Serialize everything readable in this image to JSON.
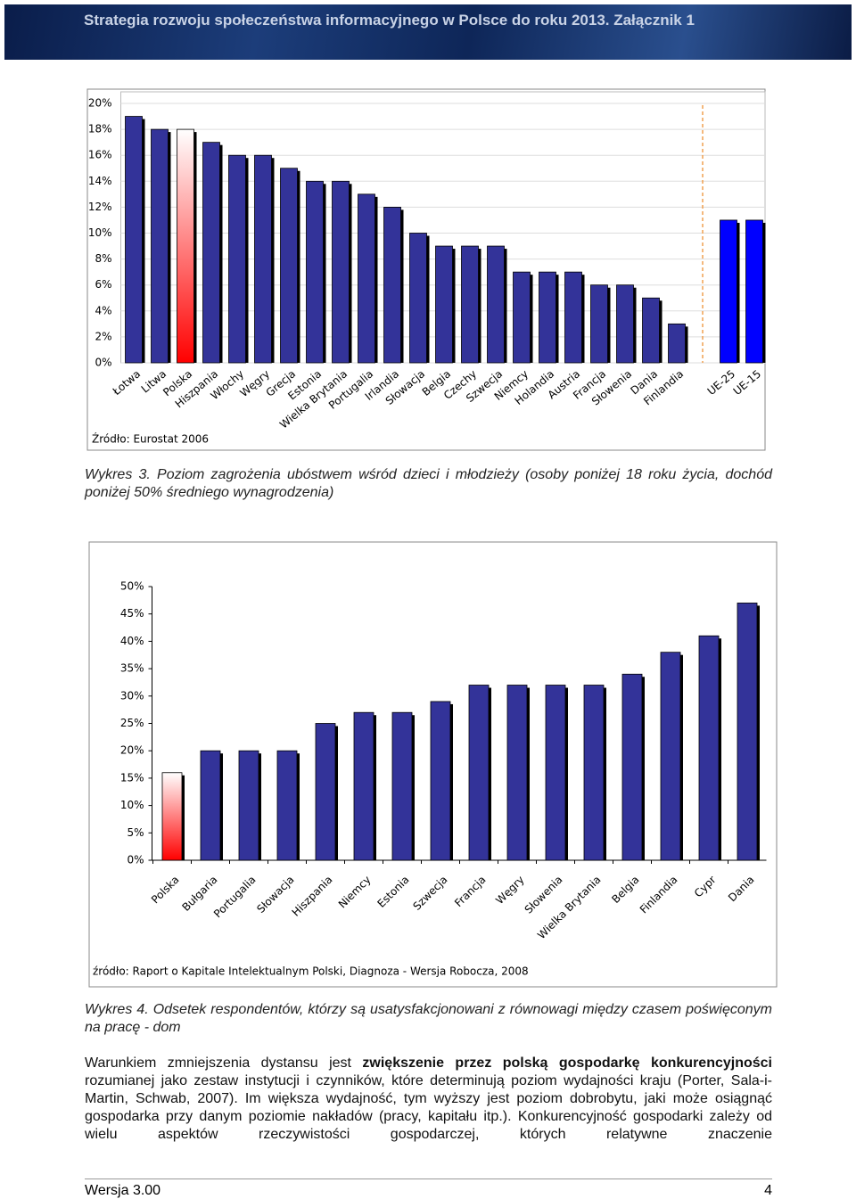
{
  "header": {
    "title": "Strategia rozwoju społeczeństwa informacyjnego w Polsce do roku 2013. Załącznik 1"
  },
  "chart_data": [
    {
      "type": "bar",
      "categories": [
        "Łotwa",
        "Litwa",
        "Polska",
        "Hiszpania",
        "Włochy",
        "Węgry",
        "Grecja",
        "Estonia",
        "Wielka Brytania",
        "Portugalia",
        "Irlandia",
        "Słowacja",
        "Belgia",
        "Czechy",
        "Szwecja",
        "Niemcy",
        "Holandia",
        "Austria",
        "Francja",
        "Słowenia",
        "Dania",
        "Finlandia",
        null,
        "UE-25",
        "UE-15"
      ],
      "values": [
        19,
        18,
        18,
        17,
        16,
        16,
        15,
        14,
        14,
        13,
        12,
        10,
        9,
        9,
        9,
        7,
        7,
        7,
        6,
        6,
        5,
        3,
        null,
        11,
        11
      ],
      "colors": [
        "#333399",
        "#333399",
        "#ff0000",
        "#333399",
        "#333399",
        "#333399",
        "#333399",
        "#333399",
        "#333399",
        "#333399",
        "#333399",
        "#333399",
        "#333399",
        "#333399",
        "#333399",
        "#333399",
        "#333399",
        "#333399",
        "#333399",
        "#333399",
        "#333399",
        "#333399",
        null,
        "#0000ff",
        "#0000ff"
      ],
      "highlight_color": "#ff0000",
      "ylim": [
        0,
        20
      ],
      "yticks": [
        {
          "value": 0,
          "label": "0%"
        },
        {
          "value": 2,
          "label": "2%"
        },
        {
          "value": 4,
          "label": "4%"
        },
        {
          "value": 6,
          "label": "6%"
        },
        {
          "value": 8,
          "label": "8%"
        },
        {
          "value": 10,
          "label": "10%"
        },
        {
          "value": 12,
          "label": "12%"
        },
        {
          "value": 14,
          "label": "14%"
        },
        {
          "value": 16,
          "label": "16%"
        },
        {
          "value": 18,
          "label": "18%"
        },
        {
          "value": 20,
          "label": "20%"
        }
      ],
      "grid": true,
      "source": "Źródło: Eurostat 2006"
    },
    {
      "type": "bar",
      "categories": [
        "Polska",
        "Bułgaria",
        "Portugalia",
        "Słowacja",
        "Hiszpania",
        "Niemcy",
        "Estonia",
        "Szwecja",
        "Francja",
        "Węgry",
        "Słowenia",
        "Wielka Brytania",
        "Belgia",
        "Finlandia",
        "Cypr",
        "Dania"
      ],
      "values": [
        16,
        20,
        20,
        20,
        25,
        27,
        27,
        29,
        32,
        32,
        32,
        32,
        34,
        38,
        41,
        47
      ],
      "colors": [
        "#ff0000",
        "#333399",
        "#333399",
        "#333399",
        "#333399",
        "#333399",
        "#333399",
        "#333399",
        "#333399",
        "#333399",
        "#333399",
        "#333399",
        "#333399",
        "#333399",
        "#333399",
        "#333399"
      ],
      "highlight_color": "#ff0000",
      "ylim": [
        0,
        50
      ],
      "yticks": [
        {
          "value": 0,
          "label": "0%"
        },
        {
          "value": 5,
          "label": "5%"
        },
        {
          "value": 10,
          "label": "10%"
        },
        {
          "value": 15,
          "label": "15%"
        },
        {
          "value": 20,
          "label": "20%"
        },
        {
          "value": 25,
          "label": "25%"
        },
        {
          "value": 30,
          "label": "30%"
        },
        {
          "value": 35,
          "label": "35%"
        },
        {
          "value": 40,
          "label": "40%"
        },
        {
          "value": 45,
          "label": "45%"
        },
        {
          "value": 50,
          "label": "50%"
        }
      ],
      "grid": false,
      "source": "źródło: Raport o Kapitale Intelektualnym Polski, Diagnoza - Wersja Robocza, 2008"
    }
  ],
  "captions": [
    "Wykres 3. Poziom zagrożenia ubóstwem wśród dzieci i młodzieży (osoby poniżej 18 roku życia, dochód poniżej 50% średniego wynagrodzenia)",
    "Wykres 4. Odsetek respondentów, którzy są usatysfakcjonowani z równowagi między czasem poświęconym na pracę - dom"
  ],
  "paragraph": [
    "Warunkiem zmniejszenia dystansu jest ",
    "zwiększenie przez polską gospodarkę konkurencyjności",
    " rozumianej jako zestaw instytucji i czynników, które determinują poziom wydajności kraju (Porter, Sala-i-Martin, Schwab, 2007). Im większa wydajność, tym wyższy jest poziom dobrobytu, jaki może osiągnąć gospodarka przy danym poziomie nakładów (pracy, kapitału itp.). Konkurencyjność gospodarki zależy od wielu aspektów rzeczywistości gospodarczej, których relatywne znaczenie"
  ],
  "footer": {
    "version": "Wersja 3.00",
    "page": "4"
  }
}
